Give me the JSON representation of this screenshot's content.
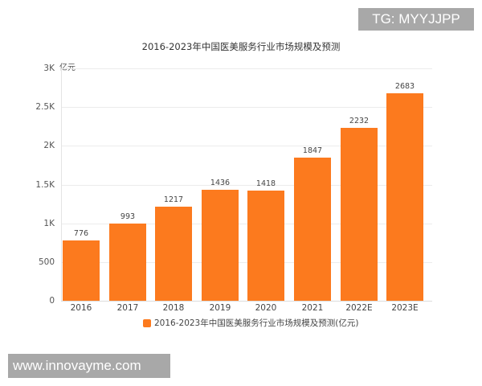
{
  "watermarks": {
    "top_right": "TG: MYYJJPP",
    "bottom_left": "www.innovayme.com"
  },
  "chart_data": {
    "type": "bar",
    "title": "2016-2023年中国医美服务行业市场规模及预测",
    "xlabel": "",
    "ylabel": "亿元",
    "ylim": [
      0,
      3000
    ],
    "grid": true,
    "legend_position": "bottom",
    "y_ticks": [
      "0",
      "500",
      "1K",
      "1.5K",
      "2K",
      "2.5K",
      "3K"
    ],
    "categories": [
      "2016",
      "2017",
      "2018",
      "2019",
      "2020",
      "2021",
      "2022E",
      "2023E"
    ],
    "series": [
      {
        "name": "2016-2023年中国医美服务行业市场规模及预测(亿元)",
        "color": "#fc7a1e",
        "values": [
          776,
          993,
          1217,
          1436,
          1418,
          1847,
          2232,
          2683
        ]
      }
    ],
    "value_labels": [
      "776",
      "993",
      "1217",
      "1436",
      "1418",
      "1847",
      "2232",
      "2683"
    ]
  }
}
